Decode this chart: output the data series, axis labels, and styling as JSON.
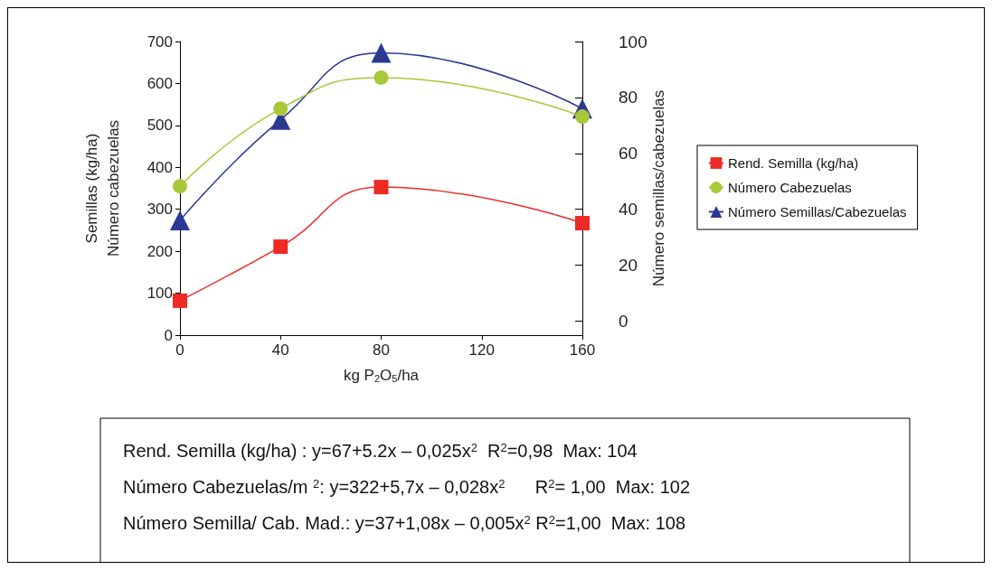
{
  "chart_data": {
    "type": "line",
    "xlabel": "kg P$_{2}$O$_{5}$/ha",
    "ylabel": "Semillas (kg/ha)\nNúmero cabezuelas",
    "y2label": "Número semillas/cabezuelas",
    "x": [
      0,
      40,
      80,
      160
    ],
    "xlim": [
      0,
      160
    ],
    "xticks": [
      0,
      40,
      80,
      120,
      160
    ],
    "ylim": [
      0,
      700
    ],
    "yticks": [
      0,
      100,
      200,
      300,
      400,
      500,
      600,
      700
    ],
    "y2lim": [
      -5,
      100
    ],
    "y2ticks": [
      0,
      20,
      40,
      60,
      80,
      100
    ],
    "series": [
      {
        "name": "Rend. Semilla (kg/ha)",
        "color": "#ee2a24",
        "marker": "square",
        "values": [
          82,
          211,
          353,
          267
        ]
      },
      {
        "name": "Número Cabezuelas",
        "color": "#a8c83a",
        "marker": "circle",
        "values": [
          355,
          540,
          614,
          521
        ]
      },
      {
        "name": "Número Semillas/Cabezuelas",
        "color": "#2b3990",
        "marker": "triangle",
        "axis": "y2",
        "values": [
          36,
          72,
          96,
          76
        ]
      }
    ],
    "grid": false,
    "legend": "right",
    "annotations": [
      "Rend. Semilla (kg/ha) : y=67+5.2x – 0,025x$^{2}$  R$^{2}$=0,98  Max: 104",
      "Número Cabezuelas/m $^{2}$: y=322+5,7x – 0,028x$^{2}$      R$^{2}$= 1,00  Max: 102",
      "Número Semilla/ Cab. Mad.: y=37+1,08x – 0,005x$^{2}$ R$^{2}$=1,00  Max: 108"
    ]
  }
}
